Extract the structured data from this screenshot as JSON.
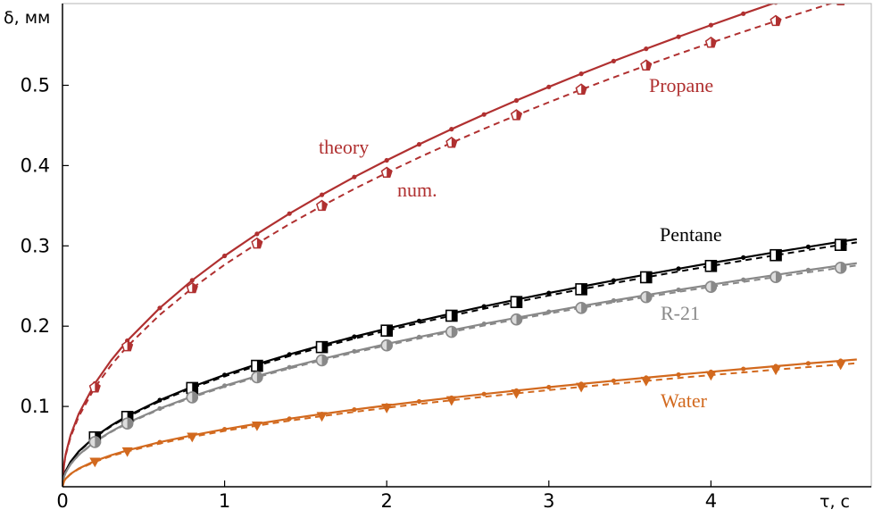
{
  "chart_data": {
    "type": "line",
    "xlabel": "τ, с",
    "ylabel": "δ, мм",
    "xlim": [
      0,
      4.9
    ],
    "ylim": [
      0,
      0.6
    ],
    "x_ticks": [
      "0",
      "1",
      "2",
      "3",
      "4"
    ],
    "y_ticks": [
      "0.1",
      "0.2",
      "0.3",
      "0.4",
      "0.5"
    ],
    "grid": false,
    "colors": {
      "propane": "#b03030",
      "pentane": "#000000",
      "r21": "#888888",
      "water": "#d2691e"
    },
    "annotations": [
      {
        "text": "theory",
        "color": "#b03030"
      },
      {
        "text": "num.",
        "color": "#b03030"
      },
      {
        "text": "Propane",
        "color": "#b03030"
      },
      {
        "text": "Pentane",
        "color": "#000000"
      },
      {
        "text": "R-21",
        "color": "#888888"
      },
      {
        "text": "Water",
        "color": "#d2691e"
      }
    ],
    "x_theory": [
      0,
      0.01,
      0.02,
      0.05,
      0.1,
      0.2,
      0.3,
      0.4,
      0.6,
      0.8,
      1.0,
      1.2,
      1.4,
      1.6,
      1.8,
      2.0,
      2.2,
      2.4,
      2.6,
      2.8,
      3.0,
      3.2,
      3.4,
      3.6,
      3.8,
      4.0,
      4.2,
      4.4,
      4.6,
      4.8,
      4.9
    ],
    "x_markers": [
      0.2,
      0.4,
      0.8,
      1.2,
      1.6,
      2.0,
      2.4,
      2.8,
      3.2,
      3.6,
      4.0,
      4.4,
      4.8
    ],
    "series": [
      {
        "name": "Propane",
        "key": "propane",
        "coef": 0.2875,
        "num_coef": 0.2765,
        "marker": "pentagon"
      },
      {
        "name": "Pentane",
        "key": "pentane",
        "coef": 0.1393,
        "num_coef": 0.1375,
        "marker": "square"
      },
      {
        "name": "R-21",
        "key": "r21",
        "coef": 0.1258,
        "num_coef": 0.1245,
        "marker": "circle"
      },
      {
        "name": "Water",
        "key": "water",
        "coef": 0.0716,
        "num_coef": 0.0695,
        "marker": "triangle"
      }
    ]
  }
}
